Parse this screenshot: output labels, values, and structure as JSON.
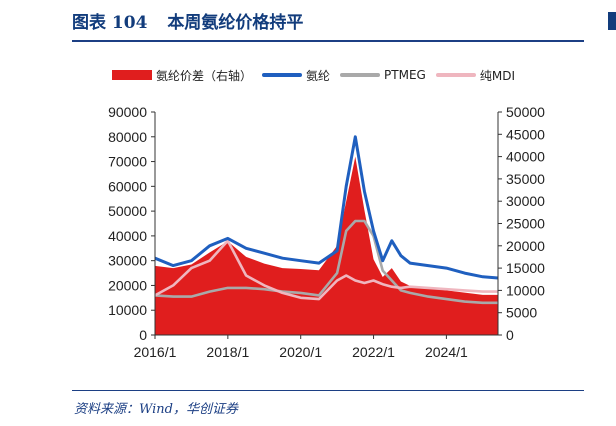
{
  "header": {
    "figure_number": "图表 104",
    "title": "本周氨纶价格持平"
  },
  "footer": {
    "source": "资料来源：Wind，华创证券"
  },
  "colors": {
    "spread": "#e01e1e",
    "spandex": "#1f5fbf",
    "ptmeg": "#a9a9a9",
    "mdi": "#efb6bf",
    "accent": "#1c3f84"
  },
  "chart_data": {
    "type": "line",
    "legend": [
      "氨纶价差（右轴）",
      "氨纶",
      "PTMEG",
      "纯MDI"
    ],
    "legend_position": "top",
    "x": [
      "2016/1",
      "2016/7",
      "2017/1",
      "2017/7",
      "2018/1",
      "2018/7",
      "2019/1",
      "2019/7",
      "2020/1",
      "2020/7",
      "2021/1",
      "2021/4",
      "2021/7",
      "2021/10",
      "2022/1",
      "2022/4",
      "2022/7",
      "2022/10",
      "2023/1",
      "2023/7",
      "2024/1",
      "2024/7",
      "2025/1",
      "2025/6"
    ],
    "x_ticks": [
      "2016/1",
      "2018/1",
      "2020/1",
      "2022/1",
      "2024/1"
    ],
    "ylim_left": [
      0,
      90000
    ],
    "yticks_left": [
      0,
      10000,
      20000,
      30000,
      40000,
      50000,
      60000,
      70000,
      80000,
      90000
    ],
    "ylim_right": [
      0,
      50000
    ],
    "yticks_right": [
      0,
      5000,
      10000,
      15000,
      20000,
      25000,
      30000,
      35000,
      40000,
      45000,
      50000
    ],
    "series": [
      {
        "name": "氨纶价差（右轴）",
        "type": "area",
        "axis": "right",
        "values": [
          15500,
          15000,
          15800,
          18500,
          21000,
          17500,
          16000,
          15000,
          14800,
          14500,
          20000,
          30000,
          40000,
          28000,
          17000,
          13000,
          15000,
          12000,
          11000,
          10500,
          10000,
          9500,
          9000,
          9000
        ]
      },
      {
        "name": "氨纶",
        "type": "line",
        "axis": "left",
        "values": [
          31000,
          28000,
          30000,
          36000,
          39000,
          35000,
          33000,
          31000,
          30000,
          29000,
          34000,
          60000,
          80000,
          58000,
          42000,
          30000,
          38000,
          32000,
          29000,
          28000,
          27000,
          25000,
          23500,
          23000
        ]
      },
      {
        "name": "PTMEG",
        "type": "line",
        "axis": "left",
        "values": [
          16000,
          15500,
          15500,
          17500,
          19000,
          19000,
          18500,
          17500,
          17000,
          16000,
          25000,
          42000,
          46000,
          46000,
          40000,
          26000,
          22000,
          18000,
          17000,
          15500,
          14500,
          13500,
          13000,
          13000
        ]
      },
      {
        "name": "纯MDI",
        "type": "line",
        "axis": "left",
        "values": [
          16000,
          20000,
          27000,
          30000,
          38000,
          24000,
          20000,
          17000,
          15000,
          14500,
          22000,
          24000,
          22000,
          21000,
          22000,
          20500,
          19500,
          19000,
          19500,
          19000,
          18500,
          18000,
          17500,
          17500
        ]
      }
    ]
  }
}
